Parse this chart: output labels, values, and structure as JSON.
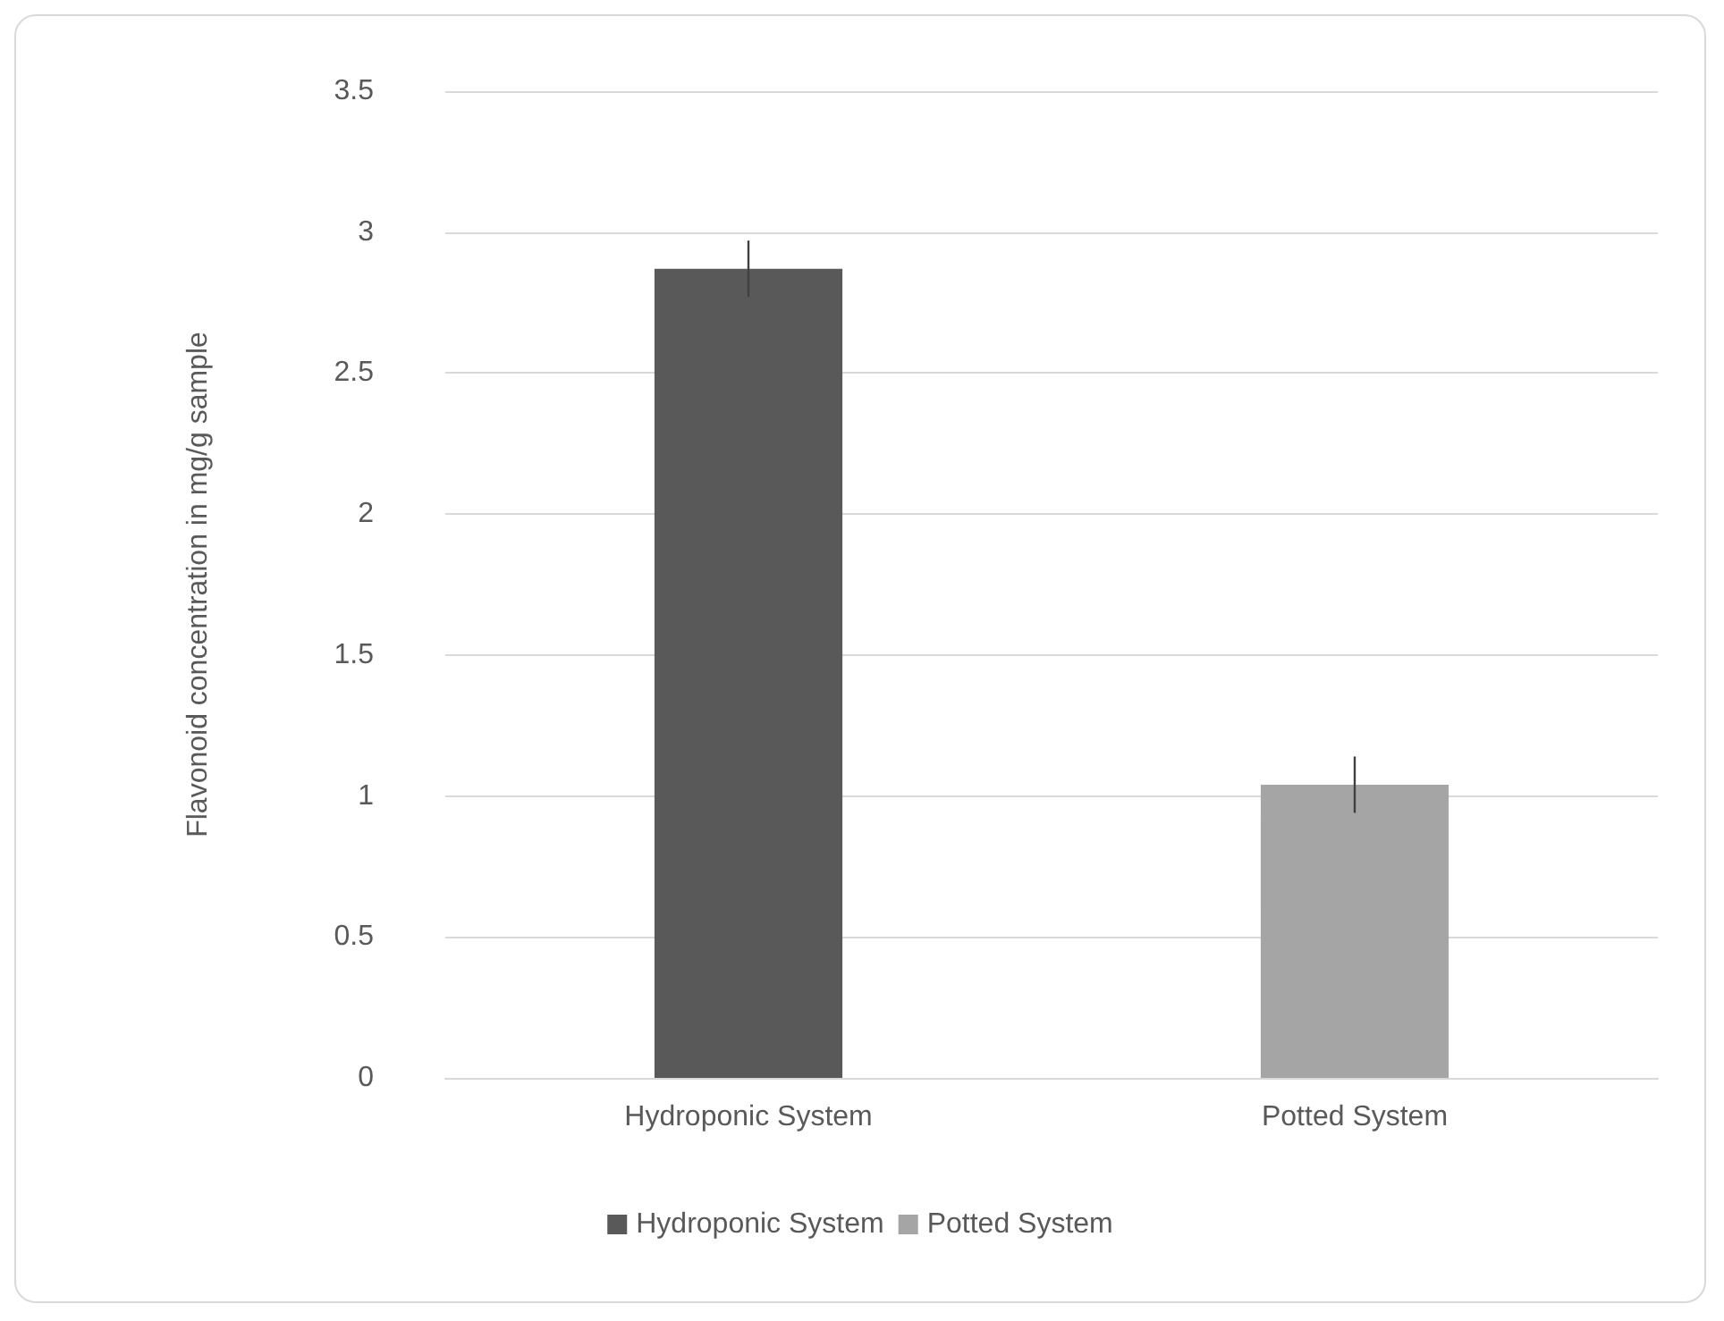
{
  "chart_data": {
    "type": "bar",
    "ylabel": "Flavonoid concentration in mg/g sample",
    "categories": [
      "Hydroponic System",
      "Potted System"
    ],
    "series": [
      {
        "name": "Hydroponic System",
        "color": "#595959",
        "values": [
          2.87,
          null
        ],
        "errors": [
          0.1,
          null
        ]
      },
      {
        "name": "Potted System",
        "color": "#a5a5a5",
        "values": [
          null,
          1.04
        ],
        "errors": [
          null,
          0.1
        ]
      }
    ],
    "ylim": [
      0,
      3.5
    ],
    "yticks": [
      0,
      0.5,
      1,
      1.5,
      2,
      2.5,
      3,
      3.5
    ],
    "grid": "y",
    "legend": "bottom"
  }
}
